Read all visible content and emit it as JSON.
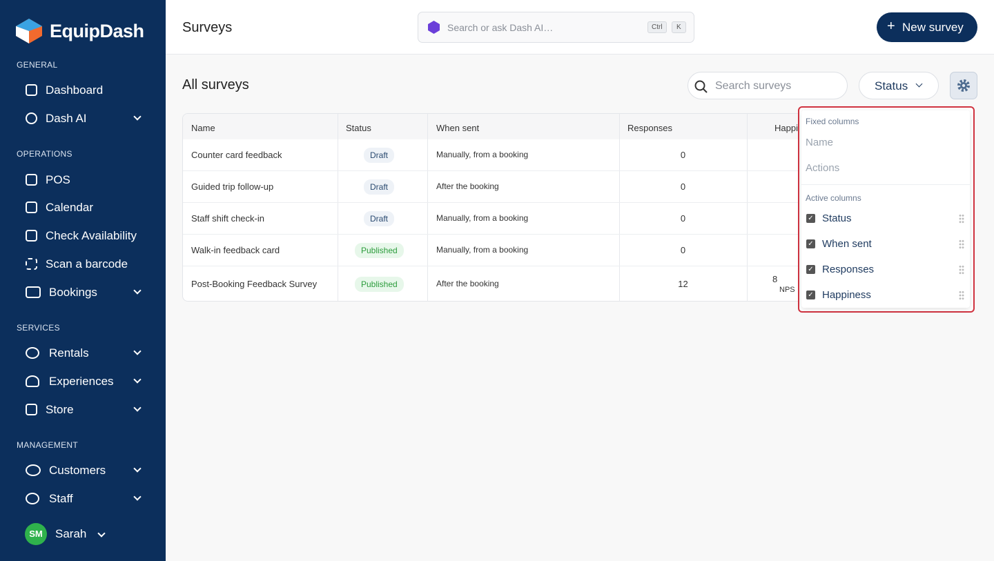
{
  "sidebar": {
    "brand": "EquipDash",
    "sections": [
      {
        "title": "GENERAL",
        "items": [
          "Dashboard",
          "Dash AI"
        ]
      },
      {
        "title": "OPERATIONS",
        "items": [
          "POS",
          "Calendar",
          "Check Availability",
          "Scan a barcode",
          "Bookings"
        ]
      },
      {
        "title": "SERVICES",
        "items": [
          "Rentals",
          "Experiences",
          "Store"
        ]
      },
      {
        "title": "MANAGEMENT",
        "items": [
          "Customers",
          "Staff"
        ]
      }
    ],
    "user": {
      "initials": "SM",
      "name": "Sarah"
    }
  },
  "header": {
    "title": "Surveys",
    "search_placeholder": "Search or ask Dash AI…",
    "shortcut": [
      "Ctrl",
      "K"
    ],
    "new_button": "New survey"
  },
  "content": {
    "title": "All surveys",
    "search_placeholder": "Search surveys",
    "status_filter": "Status"
  },
  "table": {
    "columns": [
      "Name",
      "Status",
      "When sent",
      "Responses",
      "Happiness"
    ],
    "rows": [
      [
        "Counter card feedback",
        "Draft",
        "Manually, from a booking",
        "0",
        ""
      ],
      [
        "Guided trip follow-up",
        "Draft",
        "After the booking",
        "0",
        ""
      ],
      [
        "Staff shift check-in",
        "Draft",
        "Manually, from a booking",
        "0",
        ""
      ],
      [
        "Walk-in feedback card",
        "Published",
        "Manually, from a booking",
        "0",
        ""
      ],
      [
        "Post-Booking Feedback Survey",
        "Published",
        "After the booking",
        "12",
        "8"
      ]
    ],
    "nps_label": "NPS"
  },
  "column_menu": {
    "fixed_title": "Fixed columns",
    "fixed": [
      "Name",
      "Actions"
    ],
    "active_title": "Active columns",
    "active": [
      "Status",
      "When sent",
      "Responses",
      "Happiness"
    ]
  }
}
